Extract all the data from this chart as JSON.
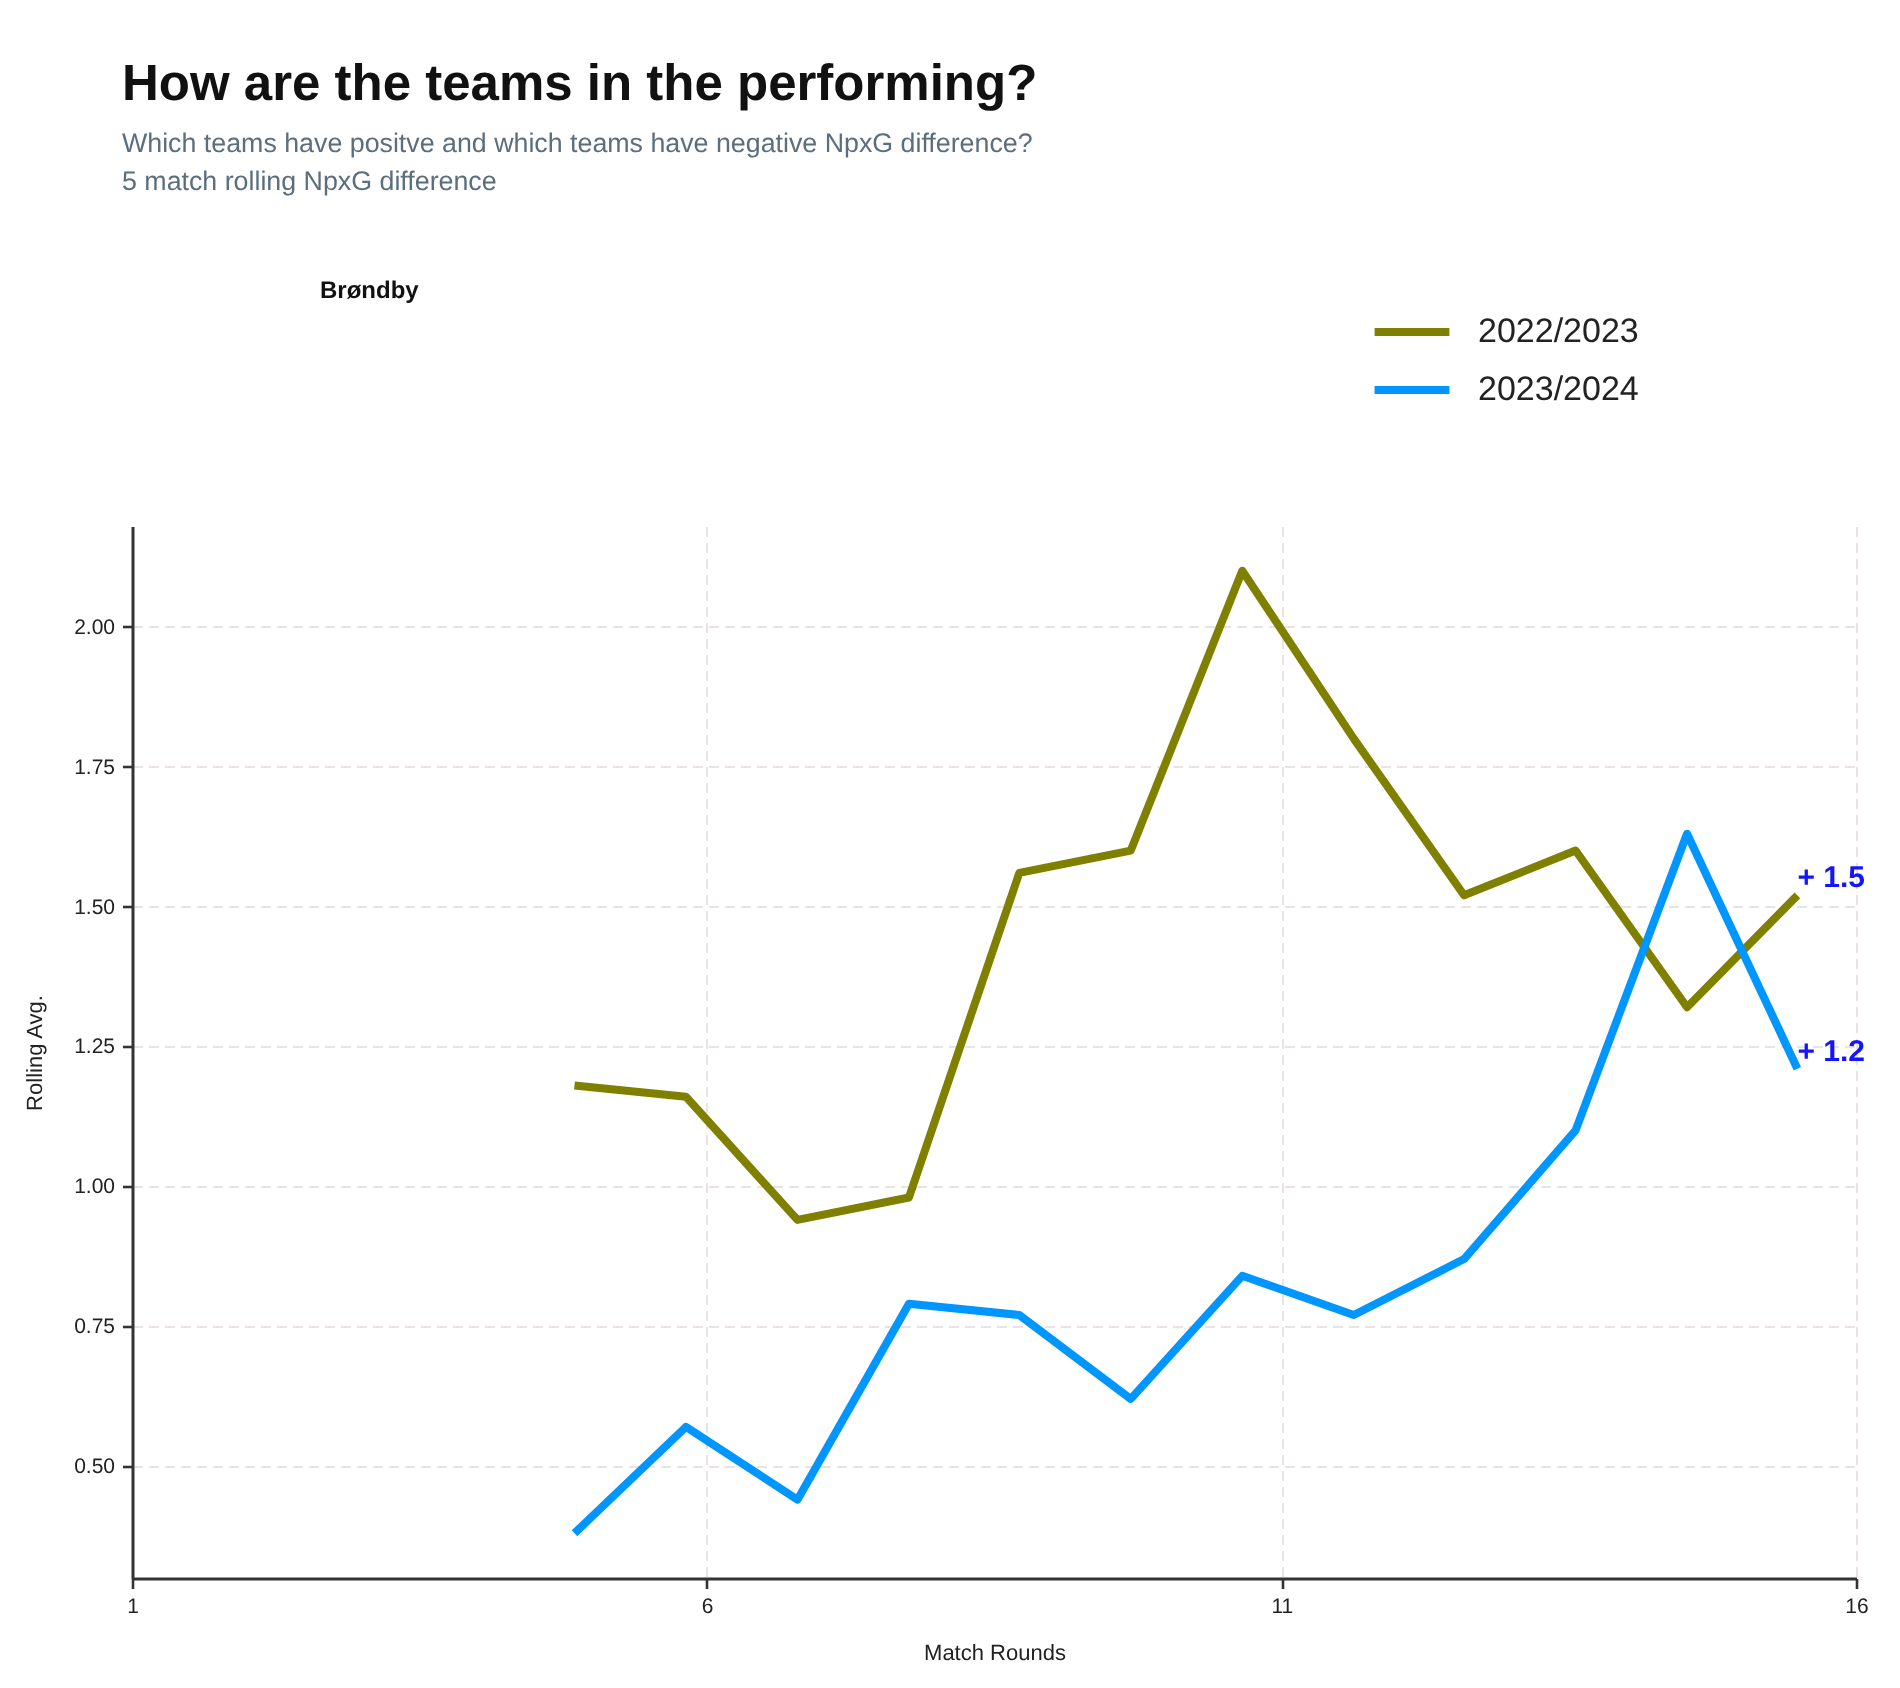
{
  "chart_data": {
    "type": "line",
    "title": "How are the teams in the  performing?",
    "subtitle": "Which teams have positve and which teams have negative NpxG difference?\n5 match rolling NpxG difference",
    "xlabel": "Match Rounds",
    "ylabel": "Rolling Avg.",
    "x": [
      4.85,
      5.82,
      6.79,
      7.76,
      8.72,
      9.69,
      10.66,
      11.63,
      12.59,
      13.56,
      14.53,
      15.49
    ],
    "series": [
      {
        "name": "2022/2023",
        "color": "#808000",
        "values": [
          1.18,
          1.16,
          0.94,
          0.98,
          1.56,
          1.6,
          2.1,
          1.8,
          1.52,
          1.6,
          1.32,
          1.52
        ]
      },
      {
        "name": "2023/2024",
        "color": "#0096ff",
        "values": [
          0.38,
          0.57,
          0.44,
          0.79,
          0.77,
          0.62,
          0.84,
          0.77,
          0.87,
          1.1,
          1.63,
          1.21
        ]
      }
    ],
    "xlim": [
      1,
      16
    ],
    "xticks": [
      1,
      6,
      11,
      16
    ],
    "ylim": [
      0.3,
      2.18
    ],
    "yticks": [
      {
        "value": 0.5,
        "label": "0.50"
      },
      {
        "value": 0.75,
        "label": "0.75"
      },
      {
        "value": 1,
        "label": "1.00"
      },
      {
        "value": 1.25,
        "label": "1.25"
      },
      {
        "value": 1.5,
        "label": "1.50"
      },
      {
        "value": 1.75,
        "label": "1.75"
      },
      {
        "value": 2,
        "label": "2.00"
      }
    ],
    "grid": true,
    "legend": "top right",
    "annotations": [
      "Brøndby",
      {
        "text": "+ 1.5",
        "x": 15.49,
        "y": 1.52
      },
      {
        "text": "+ 1.2",
        "x": 15.49,
        "y": 1.21
      }
    ]
  }
}
